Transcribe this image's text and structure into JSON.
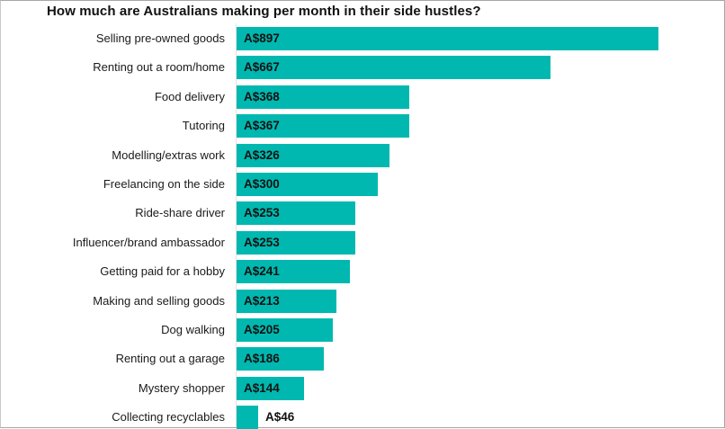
{
  "chart_data": {
    "type": "bar",
    "orientation": "horizontal",
    "title": "How much are Australians making per month in their side hustles?",
    "xlabel": "",
    "ylabel": "",
    "grid": false,
    "legend": null,
    "value_prefix": "A$",
    "bar_color": "#00b8b0",
    "xlim": [
      0,
      900
    ],
    "categories": [
      "Selling pre-owned goods",
      "Renting out a room/home",
      "Food delivery",
      "Tutoring",
      "Modelling/extras work",
      "Freelancing on the side",
      "Ride-share driver",
      "Influencer/brand ambassador",
      "Getting paid for a hobby",
      "Making and selling goods",
      "Dog walking",
      "Renting out a garage",
      "Mystery shopper",
      "Collecting recyclables"
    ],
    "values": [
      897,
      667,
      368,
      367,
      326,
      300,
      253,
      253,
      241,
      213,
      205,
      186,
      144,
      46
    ],
    "value_labels": [
      "A$897",
      "A$667",
      "A$368",
      "A$367",
      "A$326",
      "A$300",
      "A$253",
      "A$253",
      "A$241",
      "A$213",
      "A$205",
      "A$186",
      "A$144",
      "A$46"
    ]
  }
}
